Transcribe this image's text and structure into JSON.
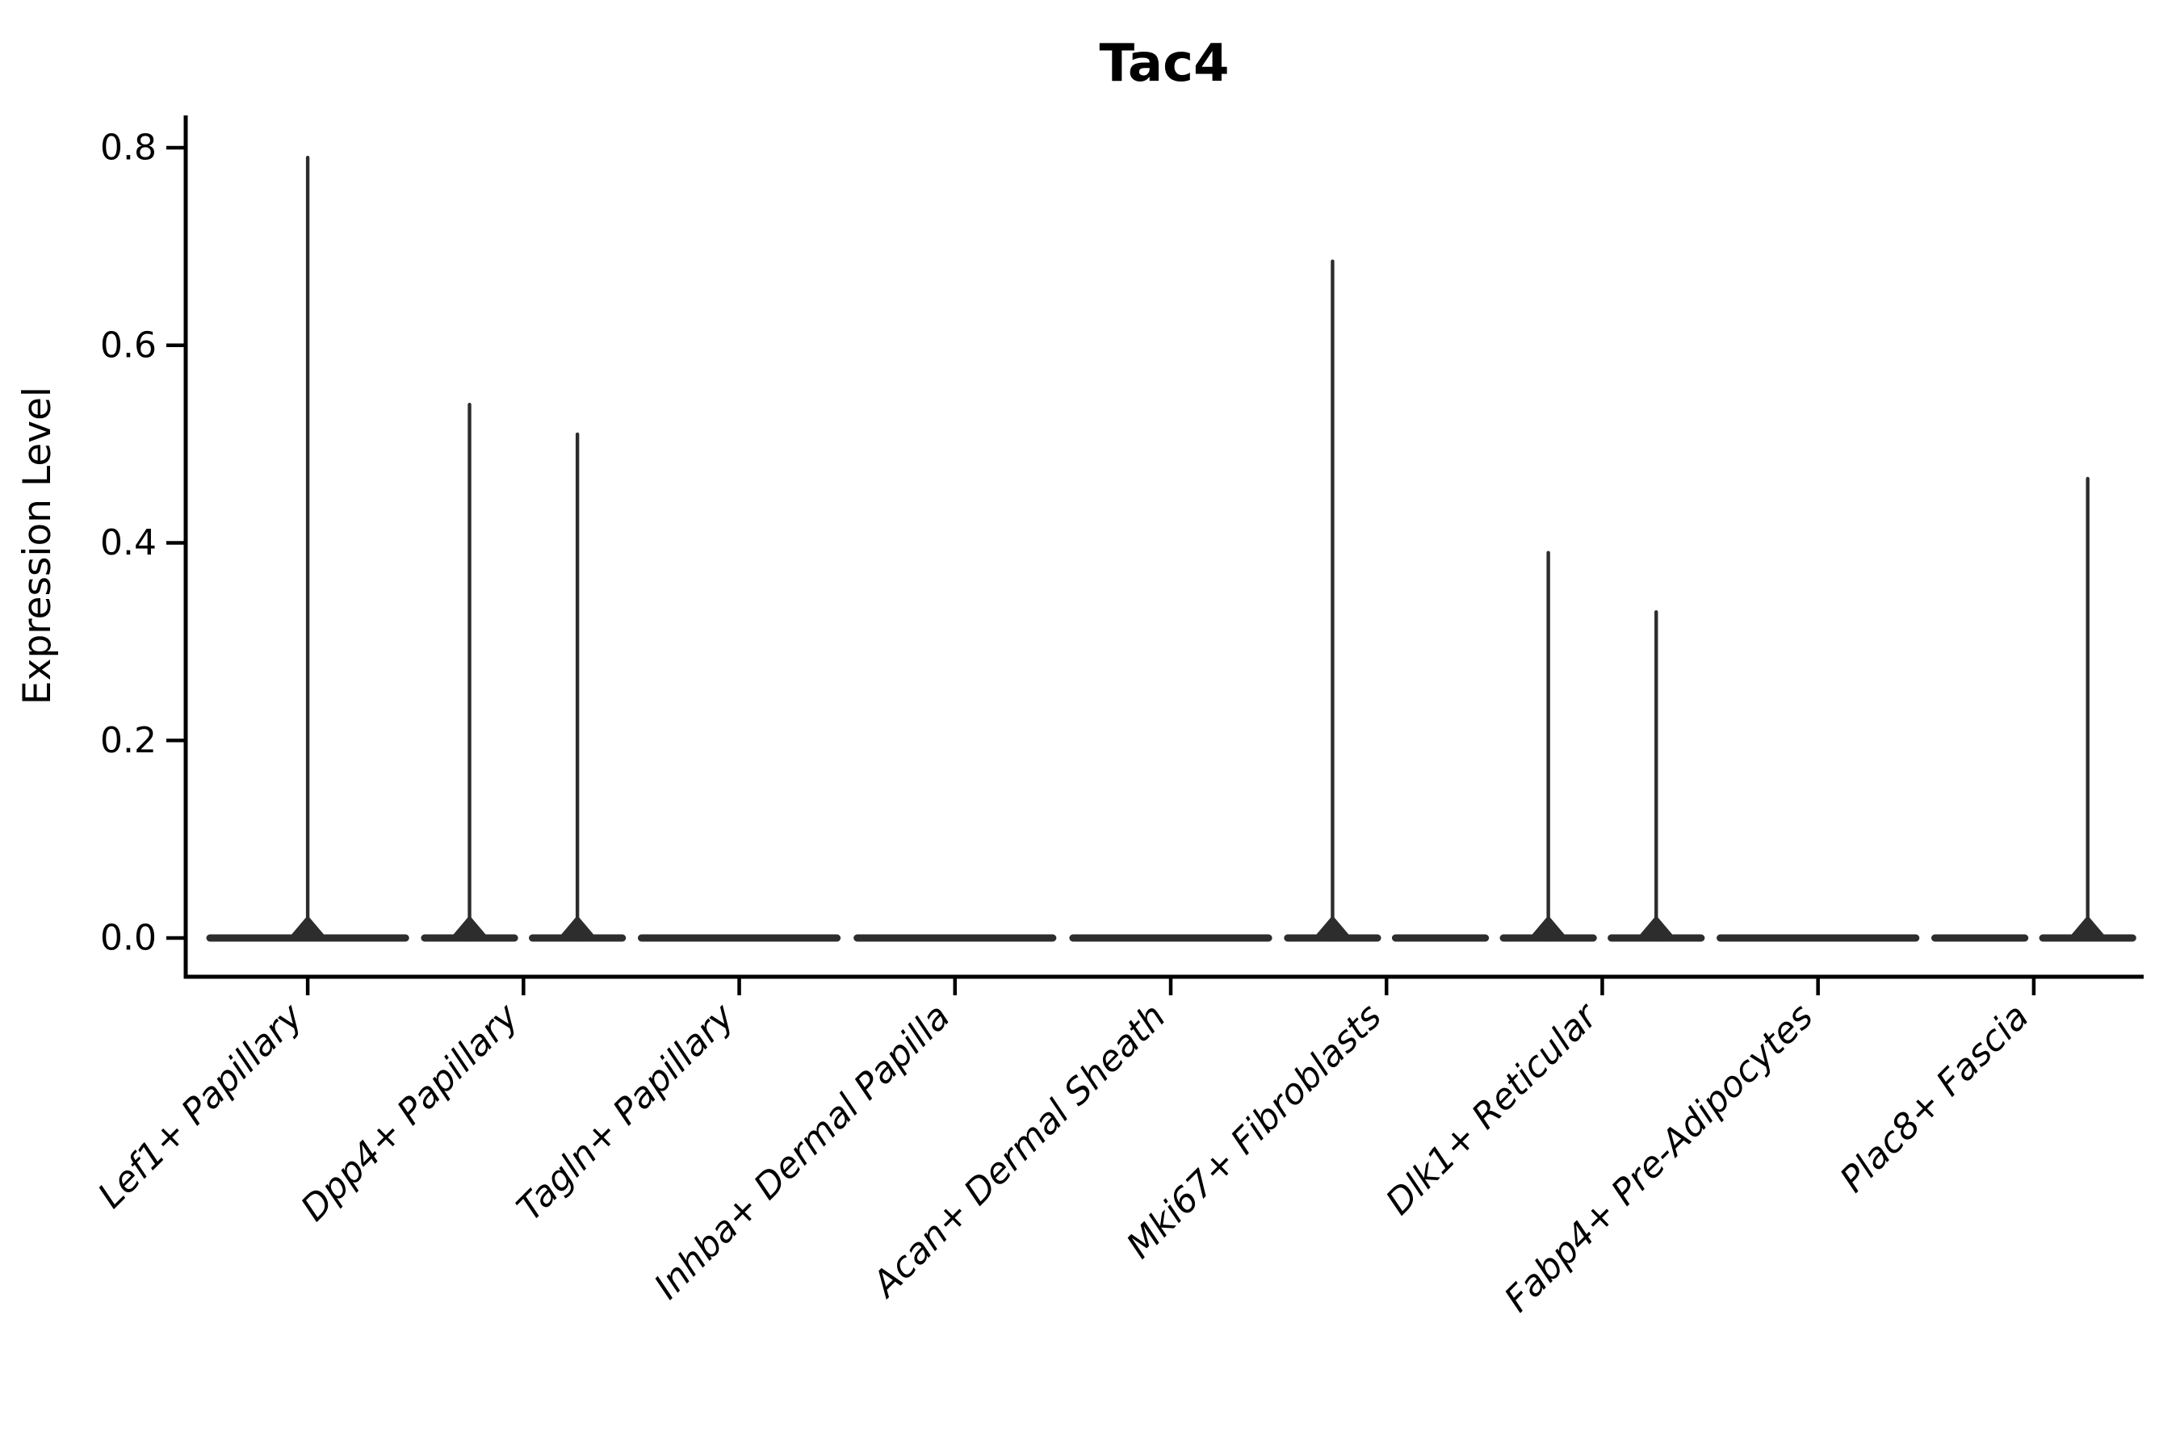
{
  "figure": {
    "background": "#ffffff",
    "ink_color": "#2d2d2d",
    "axis_color": "#000000",
    "text_color": "#000000"
  },
  "chart_data": {
    "type": "violin",
    "title": "Tac4",
    "xlabel": "",
    "ylabel": "Expression Level",
    "ylim": [
      0,
      0.84
    ],
    "yticks": [
      0.0,
      0.2,
      0.4,
      0.6,
      0.8
    ],
    "ytick_labels": [
      "0.0",
      "0.2",
      "0.4",
      "0.6",
      "0.8"
    ],
    "grid": false,
    "legend": "none",
    "categories": [
      "Lef1+ Papillary",
      "Dpp4+ Papillary",
      "Tagln+ Papillary",
      "Inhba+ Dermal Papilla",
      "Acan+ Dermal Sheath",
      "Mki67+ Fibroblasts",
      "Dlk1+ Reticular",
      "Fabp4+ Pre-Adipocytes",
      "Plac8+ Fascia"
    ],
    "violins": [
      {
        "category": "Lef1+ Papillary",
        "peaks": [
          0.79
        ]
      },
      {
        "category": "Dpp4+ Papillary",
        "peaks": [
          0.54,
          0.51
        ]
      },
      {
        "category": "Tagln+ Papillary",
        "peaks": [
          0.0
        ]
      },
      {
        "category": "Inhba+ Dermal Papilla",
        "peaks": [
          0.0
        ]
      },
      {
        "category": "Acan+ Dermal Sheath",
        "peaks": [
          0.0
        ]
      },
      {
        "category": "Mki67+ Fibroblasts",
        "peaks": [
          0.685,
          0.0
        ]
      },
      {
        "category": "Dlk1+ Reticular",
        "peaks": [
          0.39,
          0.33
        ]
      },
      {
        "category": "Fabp4+ Pre-Adipocytes",
        "peaks": [
          0.0
        ]
      },
      {
        "category": "Plac8+ Fascia",
        "peaks": [
          0.0,
          0.465
        ]
      }
    ],
    "notes": "Violins are essentially collapsed at 0 (flat horizontal bars) with thin density spikes rising to the listed peak expression values. Categories with two peak entries contain two dodged violins."
  }
}
